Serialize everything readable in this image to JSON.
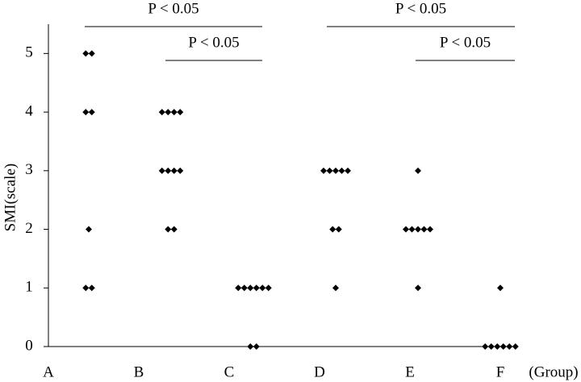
{
  "chart_data": {
    "type": "dotplot",
    "y_label": "SMI(scale)",
    "x_label": "(Group)",
    "categories": [
      "A",
      "B",
      "C",
      "D",
      "E",
      "F"
    ],
    "values": [
      [
        5,
        5,
        4,
        4,
        2,
        1,
        1
      ],
      [
        4,
        4,
        4,
        4,
        3,
        3,
        3,
        3,
        2,
        2
      ],
      [
        1,
        1,
        1,
        1,
        1,
        1,
        0,
        0
      ],
      [
        3,
        3,
        3,
        3,
        3,
        2,
        2,
        1
      ],
      [
        3,
        2,
        2,
        2,
        2,
        2,
        1
      ],
      [
        1,
        0,
        0,
        0,
        0,
        0,
        0
      ]
    ],
    "color": "#000000",
    "ylim": [
      0,
      5.5
    ],
    "yticks": [
      0,
      1,
      2,
      3,
      4,
      5
    ],
    "annotations": [
      "P < 0.05",
      "P < 0.05",
      "P < 0.05",
      "P < 0.05"
    ]
  }
}
